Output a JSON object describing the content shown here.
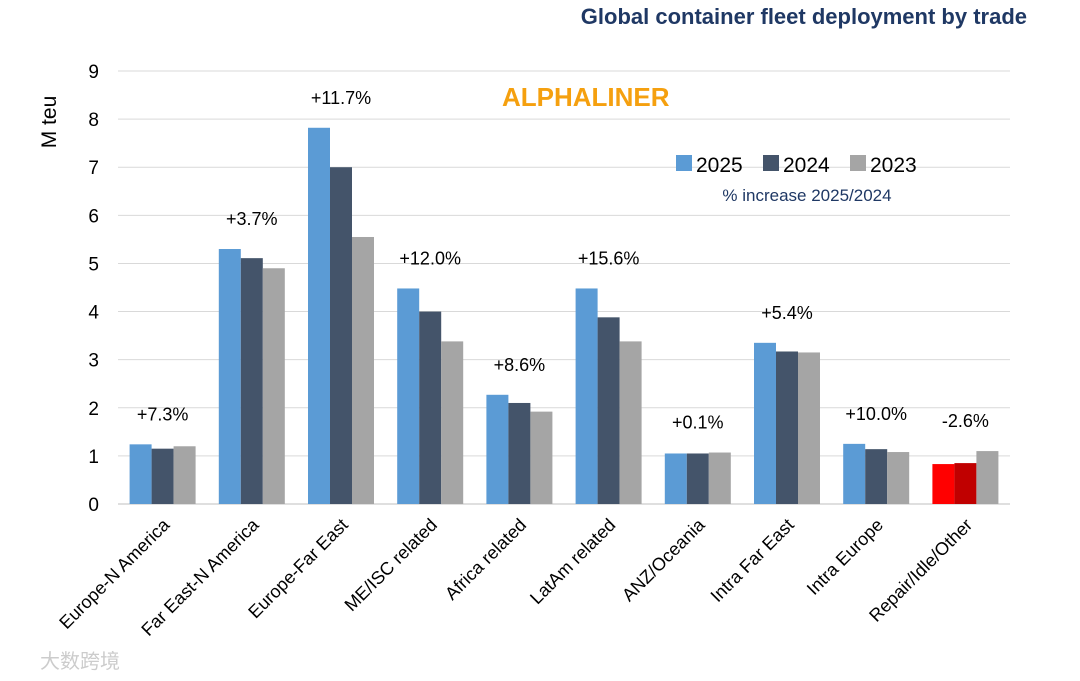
{
  "chart_data": {
    "type": "bar",
    "title": "Global container fleet deployment by trade",
    "brand": "ALPHALINER",
    "ylabel": "M teu",
    "xlabel": "",
    "ylim": [
      0,
      9
    ],
    "yticks": [
      "0",
      "1",
      "2",
      "3",
      "4",
      "5",
      "6",
      "7",
      "8",
      "9"
    ],
    "grid": true,
    "legend_position": "top-right",
    "legend_note": "% increase 2025/2024",
    "categories": [
      "Europe-N America",
      "Far East-N America",
      "Europe-Far East",
      "ME/ISC related",
      "Africa related",
      "LatAm related",
      "ANZ/Oceania",
      "Intra Far East",
      "Intra Europe",
      "Repair/Idle/Other"
    ],
    "series": [
      {
        "name": "2025",
        "color": "#5b9bd5",
        "values": [
          1.24,
          5.3,
          7.82,
          4.48,
          2.27,
          4.48,
          1.05,
          3.35,
          1.25,
          0.83
        ]
      },
      {
        "name": "2024",
        "color": "#44546a",
        "values": [
          1.15,
          5.11,
          7.0,
          4.0,
          2.1,
          3.88,
          1.05,
          3.17,
          1.14,
          0.85
        ]
      },
      {
        "name": "2023",
        "color": "#a5a5a5",
        "values": [
          1.2,
          4.9,
          5.55,
          3.38,
          1.92,
          3.38,
          1.07,
          3.15,
          1.08,
          1.1
        ]
      }
    ],
    "highlight": {
      "category": "Repair/Idle/Other",
      "colors": [
        "#ff0000",
        "#c00000",
        "#a5a5a5"
      ]
    },
    "annotations": [
      "+7.3%",
      "+3.7%",
      "+11.7%",
      "+12.0%",
      "+8.6%",
      "+15.6%",
      "+0.1%",
      "+5.4%",
      "+10.0%",
      "-2.6%"
    ]
  },
  "watermark": "大数跨境"
}
